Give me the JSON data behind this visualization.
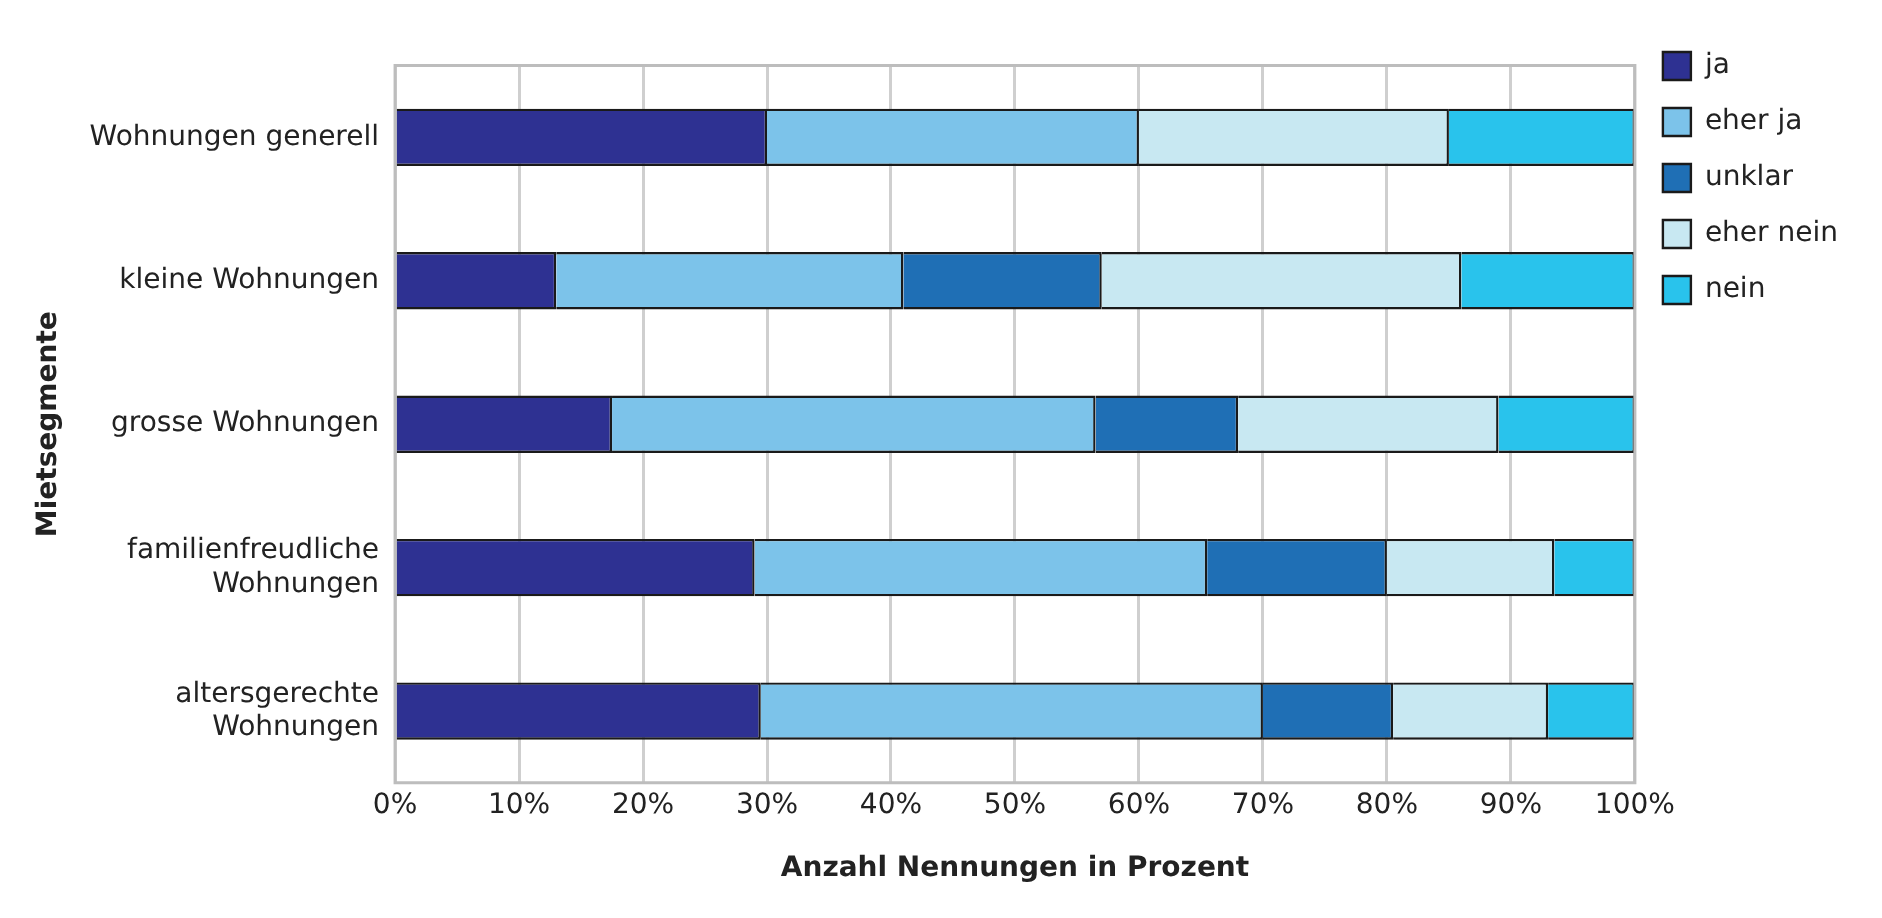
{
  "chart_data": {
    "type": "bar",
    "orientation": "horizontal",
    "stacked": true,
    "xlabel": "Anzahl Nennungen in Prozent",
    "ylabel": "Mietsegmente",
    "categories": [
      "Wohnungen generell",
      "kleine Wohnungen",
      "grosse Wohnungen",
      "familienfreudliche Wohnungen",
      "altersgerechte Wohnungen"
    ],
    "series": [
      {
        "name": "ja",
        "color": "#2e3192",
        "values": [
          30,
          13,
          17.5,
          29,
          29.5
        ]
      },
      {
        "name": "eher ja",
        "color": "#7cc3ea",
        "values": [
          30,
          28,
          39,
          36.5,
          40.5
        ]
      },
      {
        "name": "unklar",
        "color": "#1f6fb5",
        "values": [
          0,
          16,
          11.5,
          14.5,
          10.5
        ]
      },
      {
        "name": "eher nein",
        "color": "#c8e8f2",
        "values": [
          25,
          29,
          21,
          13.5,
          12.5
        ]
      },
      {
        "name": "nein",
        "color": "#29c3ec",
        "values": [
          15,
          14,
          11,
          6.5,
          7
        ]
      }
    ],
    "xlim": [
      0,
      100
    ],
    "xticks": [
      {
        "value": 0,
        "label": "0%"
      },
      {
        "value": 10,
        "label": "10%"
      },
      {
        "value": 20,
        "label": "20%"
      },
      {
        "value": 30,
        "label": "30%"
      },
      {
        "value": 40,
        "label": "40%"
      },
      {
        "value": 50,
        "label": "50%"
      },
      {
        "value": 60,
        "label": "60%"
      },
      {
        "value": 70,
        "label": "70%"
      },
      {
        "value": 80,
        "label": "80%"
      },
      {
        "value": 90,
        "label": "90%"
      },
      {
        "value": 100,
        "label": "100%"
      }
    ],
    "grid": "x",
    "legend": "top right"
  }
}
